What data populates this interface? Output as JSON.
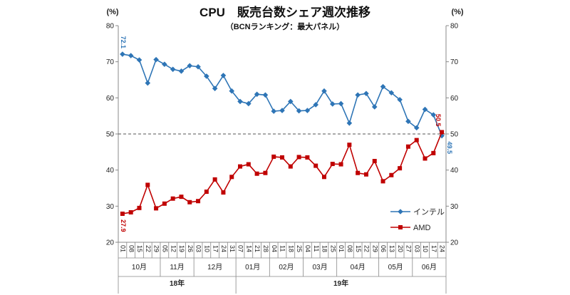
{
  "chart_data": {
    "type": "line",
    "title": "CPU　販売台数シェア週次推移",
    "subtitle": "（BCNランキング：最大パネル）",
    "ylabel_left": "(%)",
    "ylabel_right": "(%)",
    "ylim": [
      20,
      80
    ],
    "yticks": [
      20,
      30,
      40,
      50,
      60,
      70,
      80
    ],
    "reference_line": 50,
    "weeks": [
      "01",
      "08",
      "15",
      "22",
      "29",
      "05",
      "12",
      "19",
      "26",
      "03",
      "10",
      "17",
      "24",
      "31",
      "07",
      "14",
      "21",
      "28",
      "04",
      "11",
      "18",
      "25",
      "04",
      "11",
      "18",
      "25",
      "01",
      "08",
      "15",
      "22",
      "29",
      "06",
      "13",
      "20",
      "27",
      "03",
      "10",
      "17",
      "24"
    ],
    "months": [
      {
        "label": "10月",
        "start": 0,
        "end": 5
      },
      {
        "label": "11月",
        "start": 5,
        "end": 9
      },
      {
        "label": "12月",
        "start": 9,
        "end": 14
      },
      {
        "label": "01月",
        "start": 14,
        "end": 18
      },
      {
        "label": "02月",
        "start": 18,
        "end": 22
      },
      {
        "label": "03月",
        "start": 22,
        "end": 26
      },
      {
        "label": "04月",
        "start": 26,
        "end": 31
      },
      {
        "label": "05月",
        "start": 31,
        "end": 35
      },
      {
        "label": "06月",
        "start": 35,
        "end": 39
      }
    ],
    "years": [
      {
        "label": "18年",
        "start": 0,
        "end": 14
      },
      {
        "label": "19年",
        "start": 14,
        "end": 39
      }
    ],
    "series": [
      {
        "name": "インテル",
        "color": "#2e75b6",
        "marker": "diamond",
        "values": [
          72.1,
          71.7,
          70.5,
          64.1,
          70.6,
          69.3,
          67.9,
          67.4,
          68.9,
          68.6,
          66.0,
          62.6,
          66.2,
          61.9,
          59.0,
          58.4,
          61.0,
          60.8,
          56.3,
          56.5,
          59.0,
          56.4,
          56.5,
          58.1,
          61.9,
          58.3,
          58.4,
          53.0,
          60.8,
          61.2,
          57.5,
          63.1,
          61.4,
          59.5,
          53.5,
          51.7,
          56.8,
          55.3,
          49.5
        ],
        "first_label": "72.1",
        "last_label": "49.5"
      },
      {
        "name": "AMD",
        "color": "#c00000",
        "marker": "square",
        "values": [
          27.9,
          28.3,
          29.5,
          35.9,
          29.4,
          30.7,
          32.1,
          32.6,
          31.1,
          31.4,
          34.0,
          37.4,
          33.8,
          38.1,
          41.0,
          41.6,
          39.0,
          39.2,
          43.7,
          43.5,
          41.0,
          43.6,
          43.5,
          41.2,
          38.1,
          41.7,
          41.6,
          47.0,
          39.2,
          38.8,
          42.5,
          36.9,
          38.6,
          40.5,
          46.5,
          48.3,
          43.2,
          44.7,
          50.5
        ],
        "first_label": "27.9",
        "last_label": "50.5"
      }
    ],
    "legend_position": "right"
  }
}
